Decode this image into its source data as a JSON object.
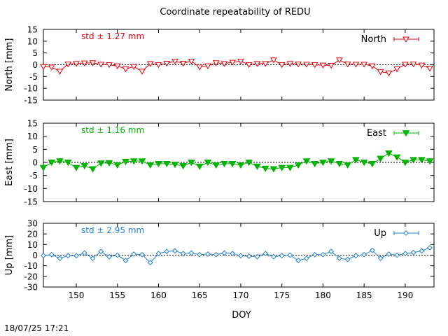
{
  "title": "Coordinate repeatability of REDU",
  "timestamp": "18/07/25 17:21",
  "chart_data": [
    {
      "type": "line",
      "ylabel": "North [mm]",
      "xlabel": "",
      "legend": "North",
      "legend_position": "top-right",
      "std_label": "std ± 1.27 mm",
      "color": "#e8000b",
      "marker": "triangle-down-open",
      "xlim": [
        146,
        193.5
      ],
      "ylim": [
        -15,
        15
      ],
      "yticks": [
        "-15",
        "-10",
        "-5",
        "0",
        "5",
        "10",
        "15"
      ],
      "xticks": [
        "150",
        "155",
        "160",
        "165",
        "170",
        "175",
        "180",
        "185",
        "190"
      ],
      "x": [
        146,
        147,
        148,
        149,
        150,
        151,
        152,
        153,
        154,
        155,
        156,
        157,
        158,
        159,
        160,
        161,
        162,
        163,
        164,
        165,
        166,
        167,
        168,
        169,
        170,
        171,
        172,
        173,
        174,
        175,
        176,
        177,
        178,
        179,
        180,
        181,
        182,
        183,
        184,
        185,
        186,
        187,
        188,
        189,
        190,
        191,
        192,
        193
      ],
      "y": [
        -0.8,
        -1.0,
        -2.8,
        0.3,
        0.5,
        0.7,
        0.8,
        0.2,
        0.0,
        -0.5,
        -1.8,
        -0.8,
        -2.8,
        0.5,
        0.0,
        0.6,
        1.5,
        0.6,
        1.5,
        -1.0,
        -0.5,
        0.8,
        0.5,
        1.0,
        1.5,
        0.0,
        0.5,
        0.5,
        2.0,
        0.0,
        0.5,
        0.3,
        0.2,
        0.0,
        -0.2,
        -0.3,
        2.0,
        0.3,
        0.2,
        0.2,
        -0.5,
        -3.0,
        -3.5,
        -1.8,
        0.2,
        0.3,
        -0.2,
        -1.5
      ]
    },
    {
      "type": "line",
      "ylabel": "East [mm]",
      "xlabel": "",
      "legend": "East",
      "legend_position": "top-right",
      "std_label": "std ± 1.16 mm",
      "color": "#00b400",
      "marker": "triangle-down-filled",
      "xlim": [
        146,
        193.5
      ],
      "ylim": [
        -15,
        15
      ],
      "yticks": [
        "-15",
        "-10",
        "-5",
        "0",
        "5",
        "10",
        "15"
      ],
      "xticks": [
        "150",
        "155",
        "160",
        "165",
        "170",
        "175",
        "180",
        "185",
        "190"
      ],
      "x": [
        146,
        147,
        148,
        149,
        150,
        151,
        152,
        153,
        154,
        155,
        156,
        157,
        158,
        159,
        160,
        161,
        162,
        163,
        164,
        165,
        166,
        167,
        168,
        169,
        170,
        171,
        172,
        173,
        174,
        175,
        176,
        177,
        178,
        179,
        180,
        181,
        182,
        183,
        184,
        185,
        186,
        187,
        188,
        189,
        190,
        191,
        192,
        193
      ],
      "y": [
        -2.0,
        0.0,
        0.5,
        0.0,
        -2.0,
        -1.3,
        -2.5,
        -0.3,
        -0.2,
        -1.0,
        0.3,
        0.5,
        0.5,
        -1.0,
        -0.5,
        -0.5,
        -0.8,
        -1.3,
        0.0,
        -1.5,
        0.0,
        -1.0,
        -0.5,
        -0.5,
        -1.0,
        0.0,
        -1.5,
        -2.3,
        -2.5,
        -2.0,
        -2.0,
        -1.0,
        0.5,
        -0.5,
        0.0,
        0.5,
        -0.5,
        -1.0,
        1.0,
        0.0,
        -0.5,
        1.5,
        3.5,
        2.0,
        0.0,
        1.0,
        1.0,
        0.5
      ]
    },
    {
      "type": "line",
      "ylabel": "Up [mm]",
      "xlabel": "DOY",
      "legend": "Up",
      "legend_position": "top-right",
      "std_label": "std ± 2.95 mm",
      "color": "#1e82dc",
      "marker": "diamond-open",
      "xlim": [
        146,
        193.5
      ],
      "ylim": [
        -30,
        30
      ],
      "yticks": [
        "-30",
        "-20",
        "-10",
        "0",
        "10",
        "20",
        "30"
      ],
      "xticks": [
        "150",
        "155",
        "160",
        "165",
        "170",
        "175",
        "180",
        "185",
        "190"
      ],
      "x": [
        146,
        147,
        148,
        149,
        150,
        151,
        152,
        153,
        154,
        155,
        156,
        157,
        158,
        159,
        160,
        161,
        162,
        163,
        164,
        165,
        166,
        167,
        168,
        169,
        170,
        171,
        172,
        173,
        174,
        175,
        176,
        177,
        178,
        179,
        180,
        181,
        182,
        183,
        184,
        185,
        186,
        187,
        188,
        189,
        190,
        191,
        192,
        193
      ],
      "y": [
        -0.5,
        0.5,
        -3.0,
        -0.5,
        -0.5,
        2.0,
        -3.0,
        3.5,
        -1.5,
        0.0,
        -5.0,
        1.0,
        0.5,
        -7.0,
        1.5,
        3.5,
        4.0,
        1.5,
        2.0,
        0.5,
        1.0,
        0.5,
        2.0,
        1.5,
        -0.5,
        -1.0,
        -1.5,
        1.5,
        -1.5,
        -0.5,
        0.0,
        -5.0,
        -3.0,
        0.5,
        0.5,
        3.5,
        -3.0,
        -4.0,
        -0.5,
        0.5,
        4.5,
        -3.0,
        1.0,
        0.0,
        1.5,
        2.5,
        4.0,
        7.0
      ]
    }
  ]
}
